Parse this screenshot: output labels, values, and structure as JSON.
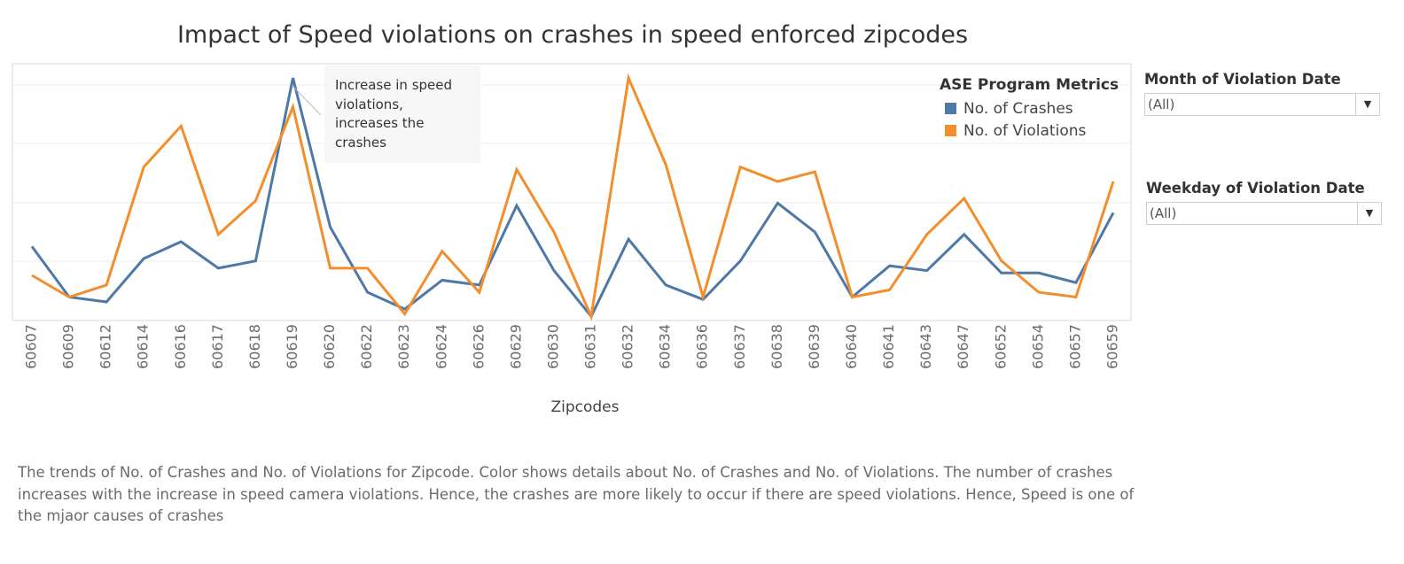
{
  "title": "Impact of Speed violations on crashes in speed enforced zipcodes",
  "annotation": "Increase in speed violations, increases the crashes",
  "legend": {
    "title": "ASE Program Metrics",
    "items": [
      {
        "label": "No. of Crashes",
        "color": "#4e79a7"
      },
      {
        "label": "No. of Violations",
        "color": "#f28e2b"
      }
    ]
  },
  "filters": {
    "month": {
      "label": "Month of Violation Date",
      "value": "(All)"
    },
    "weekday": {
      "label": "Weekday of Violation Date",
      "value": "(All)"
    }
  },
  "caption": "The trends of No. of Crashes and No. of Violations for Zipcode.  Color shows details about No. of Crashes and No. of Violations. The number of crashes increases with the increase in speed camera violations. Hence, the crashes are more likely to occur if there are speed violations. Hence, Speed is one of the mjaor causes of crashes",
  "chart_data": {
    "type": "line",
    "xlabel": "Zipcodes",
    "ylabel": "",
    "grid": true,
    "legend_position": "top-right",
    "categories": [
      "60607",
      "60609",
      "60612",
      "60614",
      "60616",
      "60617",
      "60618",
      "60619",
      "60620",
      "60622",
      "60623",
      "60624",
      "60626",
      "60629",
      "60630",
      "60631",
      "60632",
      "60634",
      "60636",
      "60637",
      "60638",
      "60639",
      "60640",
      "60641",
      "60643",
      "60647",
      "60652",
      "60654",
      "60657",
      "60659"
    ],
    "ylim": [
      0,
      1
    ],
    "series": [
      {
        "name": "No. of Crashes",
        "color": "#4e79a7",
        "values": [
          0.3,
          0.09,
          0.07,
          0.25,
          0.32,
          0.21,
          0.24,
          1.0,
          0.38,
          0.11,
          0.04,
          0.16,
          0.14,
          0.47,
          0.2,
          0.01,
          0.33,
          0.14,
          0.08,
          0.24,
          0.48,
          0.36,
          0.09,
          0.22,
          0.2,
          0.35,
          0.19,
          0.19,
          0.15,
          0.44
        ]
      },
      {
        "name": "No. of Violations",
        "color": "#f28e2b",
        "values": [
          0.18,
          0.09,
          0.14,
          0.63,
          0.8,
          0.35,
          0.49,
          0.88,
          0.21,
          0.21,
          0.02,
          0.28,
          0.11,
          0.62,
          0.36,
          0.01,
          1.0,
          0.64,
          0.09,
          0.63,
          0.57,
          0.61,
          0.09,
          0.12,
          0.35,
          0.5,
          0.24,
          0.11,
          0.09,
          0.57
        ]
      }
    ]
  }
}
